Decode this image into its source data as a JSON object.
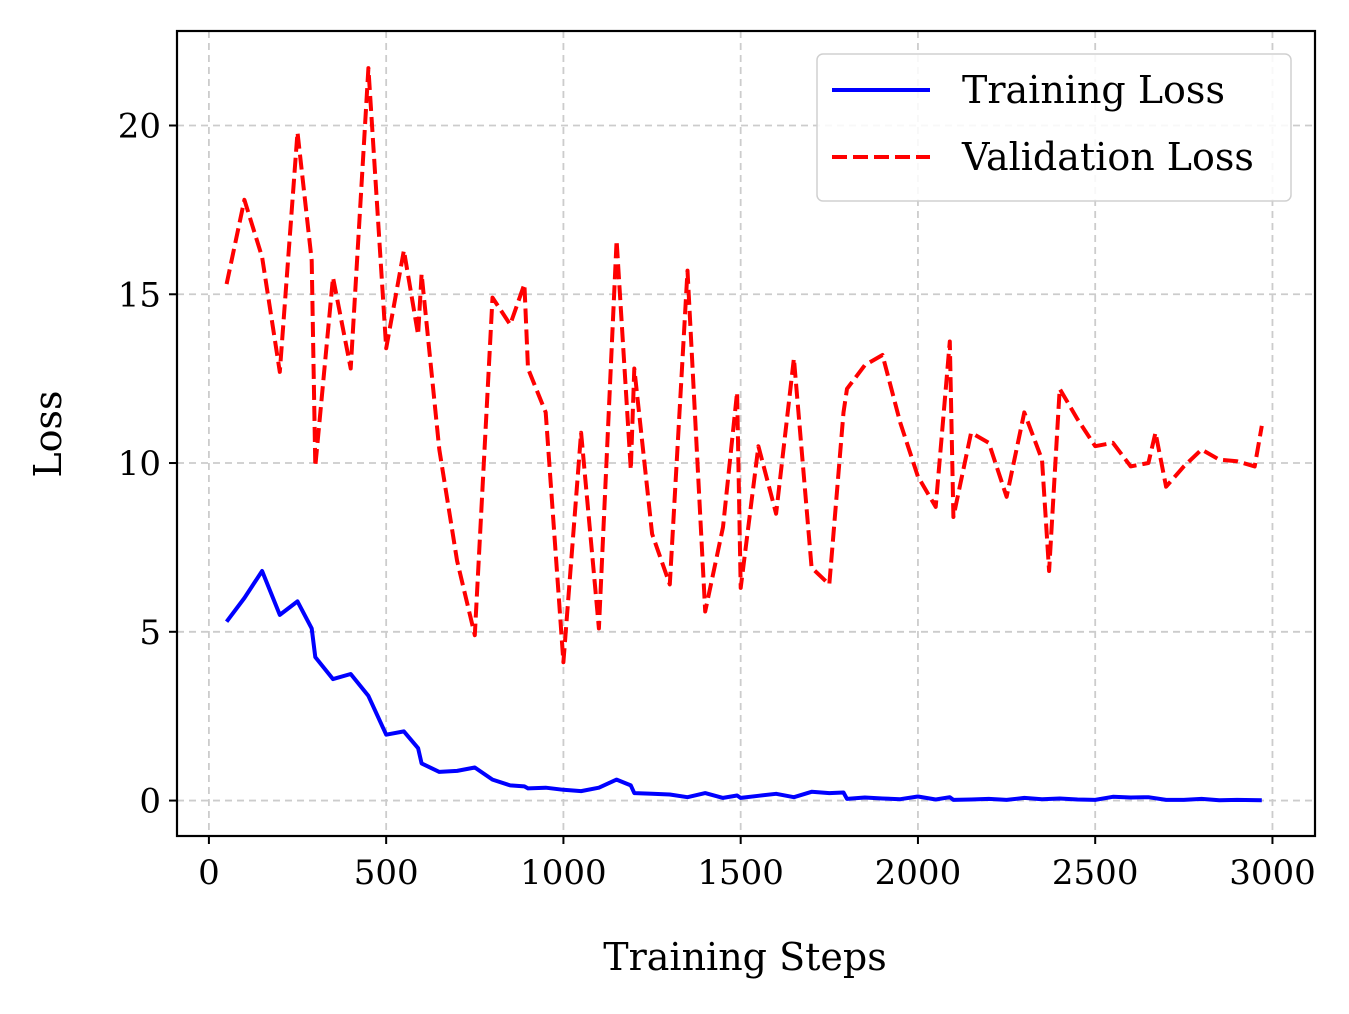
{
  "chart_data": {
    "type": "line",
    "title": "",
    "xlabel": "Training Steps",
    "ylabel": "Loss",
    "xlim": [
      -90,
      3120
    ],
    "ylim": [
      -1.05,
      22.8
    ],
    "xticks": [
      0,
      500,
      1000,
      1500,
      2000,
      2500,
      3000
    ],
    "yticks": [
      0,
      5,
      10,
      15,
      20
    ],
    "grid": true,
    "legend_position": "top-right",
    "series": [
      {
        "name": "Training Loss",
        "color": "#0000ff",
        "linestyle": "solid",
        "x": [
          50,
          100,
          150,
          200,
          250,
          290,
          300,
          350,
          400,
          450,
          500,
          550,
          590,
          600,
          650,
          700,
          750,
          800,
          850,
          890,
          900,
          950,
          1000,
          1050,
          1100,
          1150,
          1190,
          1200,
          1250,
          1300,
          1350,
          1400,
          1450,
          1490,
          1500,
          1550,
          1600,
          1650,
          1700,
          1750,
          1790,
          1800,
          1850,
          1900,
          1950,
          2000,
          2050,
          2090,
          2100,
          2150,
          2200,
          2250,
          2300,
          2350,
          2400,
          2450,
          2500,
          2550,
          2600,
          2650,
          2700,
          2750,
          2800,
          2850,
          2900,
          2970
        ],
        "y": [
          5.3,
          6.0,
          6.8,
          5.5,
          5.9,
          5.1,
          4.25,
          3.6,
          3.75,
          3.1,
          1.95,
          2.05,
          1.55,
          1.1,
          0.85,
          0.88,
          0.98,
          0.62,
          0.45,
          0.42,
          0.36,
          0.38,
          0.32,
          0.28,
          0.38,
          0.62,
          0.45,
          0.22,
          0.2,
          0.18,
          0.1,
          0.22,
          0.08,
          0.15,
          0.08,
          0.14,
          0.2,
          0.1,
          0.26,
          0.22,
          0.24,
          0.05,
          0.09,
          0.06,
          0.04,
          0.12,
          0.03,
          0.1,
          0.02,
          0.03,
          0.05,
          0.02,
          0.08,
          0.04,
          0.06,
          0.03,
          0.02,
          0.11,
          0.09,
          0.1,
          0.02,
          0.02,
          0.05,
          0.01,
          0.02,
          0.01
        ]
      },
      {
        "name": "Validation Loss",
        "color": "#ff0000",
        "linestyle": "dashed",
        "x": [
          50,
          100,
          150,
          200,
          250,
          290,
          300,
          350,
          400,
          450,
          500,
          550,
          590,
          600,
          650,
          700,
          750,
          800,
          850,
          890,
          900,
          950,
          1000,
          1050,
          1100,
          1150,
          1190,
          1200,
          1250,
          1300,
          1350,
          1400,
          1450,
          1490,
          1500,
          1550,
          1600,
          1650,
          1700,
          1750,
          1790,
          1800,
          1850,
          1900,
          1950,
          2000,
          2050,
          2090,
          2100,
          2150,
          2200,
          2250,
          2300,
          2350,
          2370,
          2400,
          2450,
          2500,
          2550,
          2600,
          2650,
          2670,
          2700,
          2750,
          2800,
          2850,
          2900,
          2950,
          2970
        ],
        "y": [
          15.3,
          17.8,
          16.1,
          12.7,
          19.8,
          16.0,
          9.9,
          15.5,
          12.8,
          21.7,
          13.4,
          16.3,
          13.8,
          15.6,
          10.4,
          7.1,
          4.9,
          14.9,
          14.1,
          15.3,
          12.8,
          11.5,
          4.1,
          10.9,
          5.1,
          16.6,
          9.8,
          12.8,
          7.9,
          6.4,
          15.7,
          5.6,
          8.1,
          12.1,
          6.3,
          10.5,
          8.5,
          13.1,
          6.9,
          6.4,
          11.5,
          12.2,
          12.9,
          13.2,
          11.2,
          9.6,
          8.7,
          13.6,
          8.4,
          10.9,
          10.6,
          9.0,
          11.5,
          10.1,
          6.8,
          12.2,
          11.3,
          10.5,
          10.6,
          9.9,
          10.0,
          10.9,
          9.3,
          9.9,
          10.4,
          10.1,
          10.05,
          9.9,
          11.1
        ]
      }
    ]
  }
}
